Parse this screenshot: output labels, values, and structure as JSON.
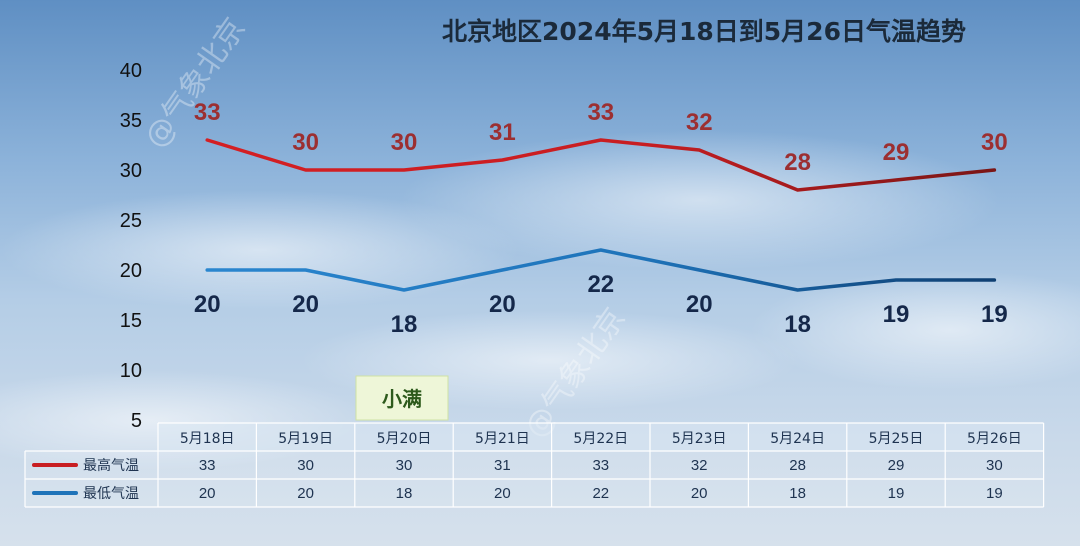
{
  "watermark": "@气象北京",
  "note": {
    "label": "小满"
  },
  "chart_data": {
    "type": "line",
    "title": "北京地区2024年5月18日到5月26日气温趋势",
    "categories": [
      "5月18日",
      "5月19日",
      "5月20日",
      "5月21日",
      "5月22日",
      "5月23日",
      "5月24日",
      "5月25日",
      "5月26日"
    ],
    "ylim": [
      5,
      40
    ],
    "yticks": [
      5,
      10,
      15,
      20,
      25,
      30,
      35,
      40
    ],
    "grid": false,
    "legend": "bottom-left",
    "series": [
      {
        "name": "最高气温",
        "color": "#c81e22",
        "label_color": "#9c2f31",
        "values": [
          33,
          30,
          30,
          31,
          33,
          32,
          28,
          29,
          30
        ]
      },
      {
        "name": "最低气温",
        "color": "#1e73b9",
        "label_color": "#15284a",
        "values": [
          20,
          20,
          18,
          20,
          22,
          20,
          18,
          19,
          19
        ]
      }
    ]
  }
}
